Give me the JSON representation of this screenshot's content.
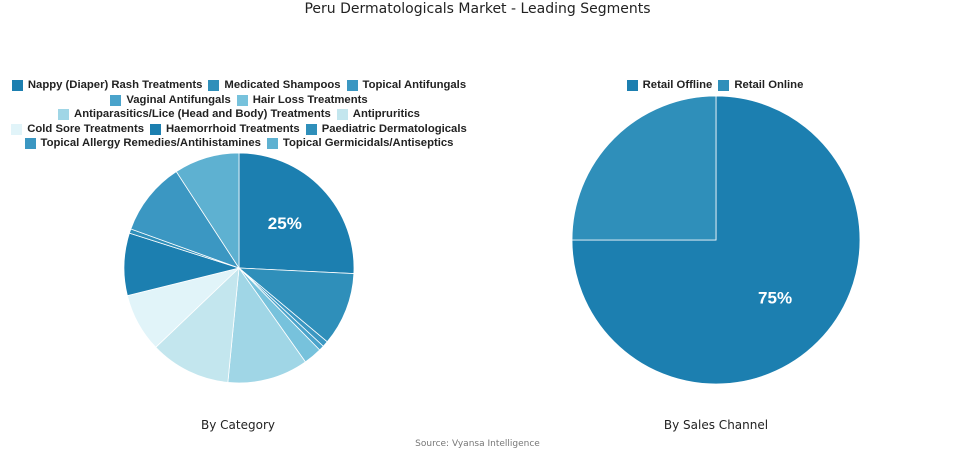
{
  "title": "Peru Dermatologicals Market - Leading Segments",
  "source": "Source: Vyansa Intelligence",
  "chart_data": [
    {
      "type": "pie",
      "caption": "By Category",
      "legend_placement": "top",
      "labels": [
        "Nappy (Diaper) Rash Treatments",
        "Medicated Shampoos",
        "Topical Antifungals",
        "Vaginal Antifungals",
        "Hair Loss Treatments",
        "Antiparasitics/Lice (Head and Body) Treatments",
        "Antipruritics",
        "Cold Sore Treatments",
        "Haemorrhoid Treatments",
        "Paediatric Dermatologicals",
        "Topical Allergy Remedies/Antihistamines",
        "Topical Germicidals/Antiseptics"
      ],
      "values": [
        25,
        10,
        0.8,
        0.7,
        2.5,
        11,
        11,
        8,
        8.5,
        0.6,
        10,
        8.9
      ],
      "colors": [
        "#1c7fb0",
        "#2f8fba",
        "#3b97c2",
        "#4aa3cb",
        "#77c2dc",
        "#a0d6e6",
        "#c3e6ee",
        "#e1f4f9",
        "#1c7fb0",
        "#2f8fba",
        "#3b97c2",
        "#5eb1d1"
      ],
      "data_labels": [
        "25%",
        "",
        "",
        "",
        "",
        "",
        "",
        "",
        "",
        "",
        "",
        ""
      ]
    },
    {
      "type": "pie",
      "caption": "By Sales Channel",
      "legend_placement": "top",
      "labels": [
        "Retail Offline",
        "Retail Online"
      ],
      "values": [
        75,
        25
      ],
      "colors": [
        "#1c7fb0",
        "#2f8fba"
      ],
      "data_labels": [
        "75%",
        ""
      ]
    }
  ]
}
